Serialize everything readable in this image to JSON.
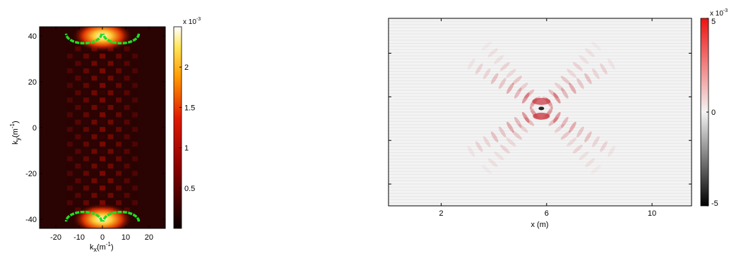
{
  "chart_data": [
    {
      "type": "heatmap",
      "title": "",
      "xlabel": "k",
      "xlabel_sub": "x",
      "xlabel_unit": "(m",
      "xlabel_unit_sup": "-1",
      "xlabel_unit_close": ")",
      "ylabel": "k",
      "ylabel_sub": "y",
      "ylabel_unit": "(m",
      "ylabel_unit_sup": "-1",
      "ylabel_unit_close": ")",
      "xlim": [
        -27,
        27
      ],
      "ylim": [
        -44,
        44
      ],
      "xticks": [
        -20,
        -10,
        0,
        10,
        20
      ],
      "xtick_labels": [
        "-20",
        "-10",
        "0",
        "10",
        "20"
      ],
      "yticks": [
        -40,
        -20,
        0,
        20,
        40
      ],
      "ytick_labels": [
        "-40",
        "-20",
        "0",
        "20",
        "40"
      ],
      "colormap": "hot",
      "colorbar": {
        "ticks": [
          0.5,
          1,
          1.5,
          2
        ],
        "tick_labels": [
          "0.5",
          "1",
          "1.5",
          "2"
        ],
        "range": [
          0,
          2.5
        ],
        "exponent_base": "x 10",
        "exponent_power": "-3"
      },
      "overlay_curve_color": "#22dd22",
      "peaks": [
        {
          "kx": 0,
          "ky": 40,
          "level": 2.4
        },
        {
          "kx": 0,
          "ky": -40,
          "level": 2.4
        }
      ]
    },
    {
      "type": "heatmap",
      "title": "",
      "xlabel": "x (m)",
      "ylabel": "",
      "xlim": [
        0,
        11.5
      ],
      "ylim": [
        0,
        8.6
      ],
      "xticks": [
        2,
        6,
        10
      ],
      "xtick_labels": [
        "2",
        "6",
        "10"
      ],
      "yticks": [
        1,
        3,
        5,
        7
      ],
      "colormap": "diverging red-white-black",
      "source": {
        "x": 5.8,
        "y": 4.5
      },
      "colorbar": {
        "ticks": [
          5,
          0,
          -5
        ],
        "tick_labels": [
          "5",
          "0",
          "-5"
        ],
        "range": [
          -5,
          5
        ],
        "exponent_base": "x 10",
        "exponent_power": "-3"
      }
    }
  ]
}
